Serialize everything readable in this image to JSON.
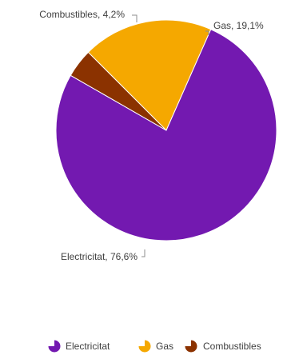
{
  "chart_data": {
    "type": "pie",
    "categories": [
      "Electricitat",
      "Gas",
      "Combustibles"
    ],
    "values": [
      76.6,
      19.1,
      4.2
    ],
    "data_labels": [
      "Electricitat, 76,6%",
      "Gas, 19,1%",
      "Combustibles, 4,2%"
    ],
    "colors": [
      "#7319b0",
      "#f5a800",
      "#8b3200"
    ],
    "start_angle_deg": -45,
    "legend_placement": "bottom-right",
    "legend_icon": "pie-slice-icon"
  }
}
